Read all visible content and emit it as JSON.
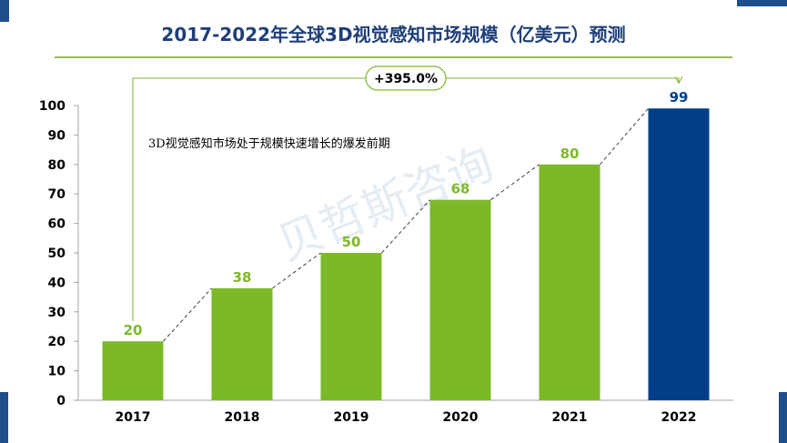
{
  "colors": {
    "bar_green": "#7cb928",
    "bar_highlight": "#003f87",
    "label_green": "#7cb928",
    "label_highlight": "#003f87",
    "title": "#1f3f7a",
    "corner": "#1f4e8c",
    "rule": "#9bbb59"
  },
  "chart_data": {
    "type": "bar",
    "title": "2017-2022年全球3D视觉感知市场规模（亿美元）预测",
    "categories": [
      "2017",
      "2018",
      "2019",
      "2020",
      "2021",
      "2022"
    ],
    "values": [
      20,
      38,
      50,
      68,
      80,
      99
    ],
    "data_labels": [
      "20",
      "38",
      "50",
      "68",
      "80",
      "99"
    ],
    "highlight_index": 5,
    "ylim": [
      0,
      100
    ],
    "yticks": [
      0,
      10,
      20,
      30,
      40,
      50,
      60,
      70,
      80,
      90,
      100
    ],
    "ytick_labels": [
      "0",
      "10",
      "20",
      "30",
      "40",
      "50",
      "60",
      "70",
      "80",
      "90",
      "100"
    ],
    "trend_line": "dashed connecting bar tops",
    "growth_annotation": "+395.0%",
    "note": "3D视觉感知市场处于规模快速增长的爆发前期",
    "watermark": "贝哲斯咨询",
    "grid": false,
    "legend": "none"
  }
}
